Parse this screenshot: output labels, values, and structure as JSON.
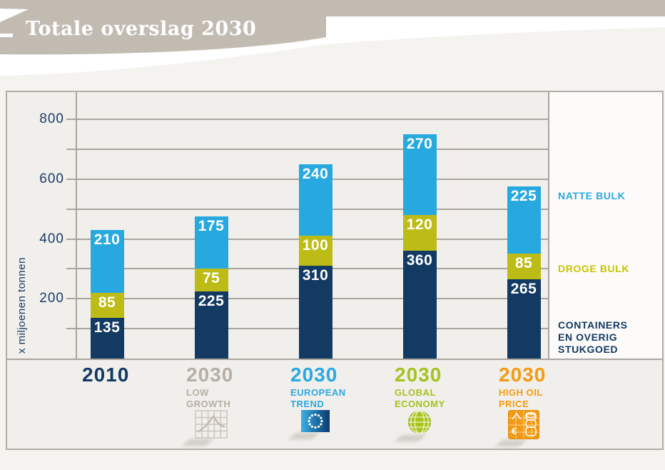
{
  "header": {
    "title": "Totale overslag 2030"
  },
  "colors": {
    "header_band": "#c2bbb1",
    "page_background": "#f4f3f0",
    "plot_background": "#f1efec",
    "legend_background": "#fcfbf9",
    "grid": "#a9a59e",
    "navy": "#123a63",
    "cyan": "#27a9e0",
    "olive": "#bdbb16",
    "grey_year": "#b6afa5",
    "green_year": "#a6c21f",
    "orange_year": "#f59b0f"
  },
  "legend": {
    "items": [
      {
        "lines": [
          "NATTE BULK"
        ],
        "color": "#2aa9e1"
      },
      {
        "lines": [
          "DROGE BULK"
        ],
        "color": "#c9c403"
      },
      {
        "lines": [
          "CONTAINERS",
          "EN OVERIG",
          "STUKGOED"
        ],
        "color": "#123a63"
      }
    ]
  },
  "chart_data": {
    "type": "bar",
    "stacked": true,
    "title": "Totale overslag 2030",
    "ylabel": "x miljoenen tonnen",
    "ylim": [
      0,
      900
    ],
    "gridline_step": 100,
    "grid": true,
    "ytick_labels": [
      "200",
      "400",
      "600",
      "800"
    ],
    "legend_position": "right-panel",
    "categories": [
      {
        "year": "2010",
        "subtitle_lines": [],
        "color": "#123a63",
        "icon": ""
      },
      {
        "year": "2030",
        "subtitle_lines": [
          "LOW",
          "GROWTH"
        ],
        "color": "#b6afa5",
        "icon": "low-growth-grid-icon"
      },
      {
        "year": "2030",
        "subtitle_lines": [
          "EUROPEAN",
          "TREND"
        ],
        "color": "#2aa9e1",
        "icon": "eu-flag-icon"
      },
      {
        "year": "2030",
        "subtitle_lines": [
          "GLOBAL",
          "ECONOMY"
        ],
        "color": "#a6c21f",
        "icon": "globe-icon"
      },
      {
        "year": "2030",
        "subtitle_lines": [
          "HIGH OIL",
          "PRICE"
        ],
        "color": "#f59b0f",
        "icon": "oil-barrels-euro-icon"
      }
    ],
    "series": [
      {
        "name": "CONTAINERS EN OVERIG STUKGOED",
        "color": "#123a63",
        "values": [
          135,
          225,
          310,
          360,
          265
        ]
      },
      {
        "name": "DROGE BULK",
        "color": "#bdbb16",
        "values": [
          85,
          75,
          100,
          120,
          85
        ]
      },
      {
        "name": "NATTE BULK",
        "color": "#27a9e0",
        "values": [
          210,
          175,
          240,
          270,
          225
        ]
      }
    ]
  }
}
